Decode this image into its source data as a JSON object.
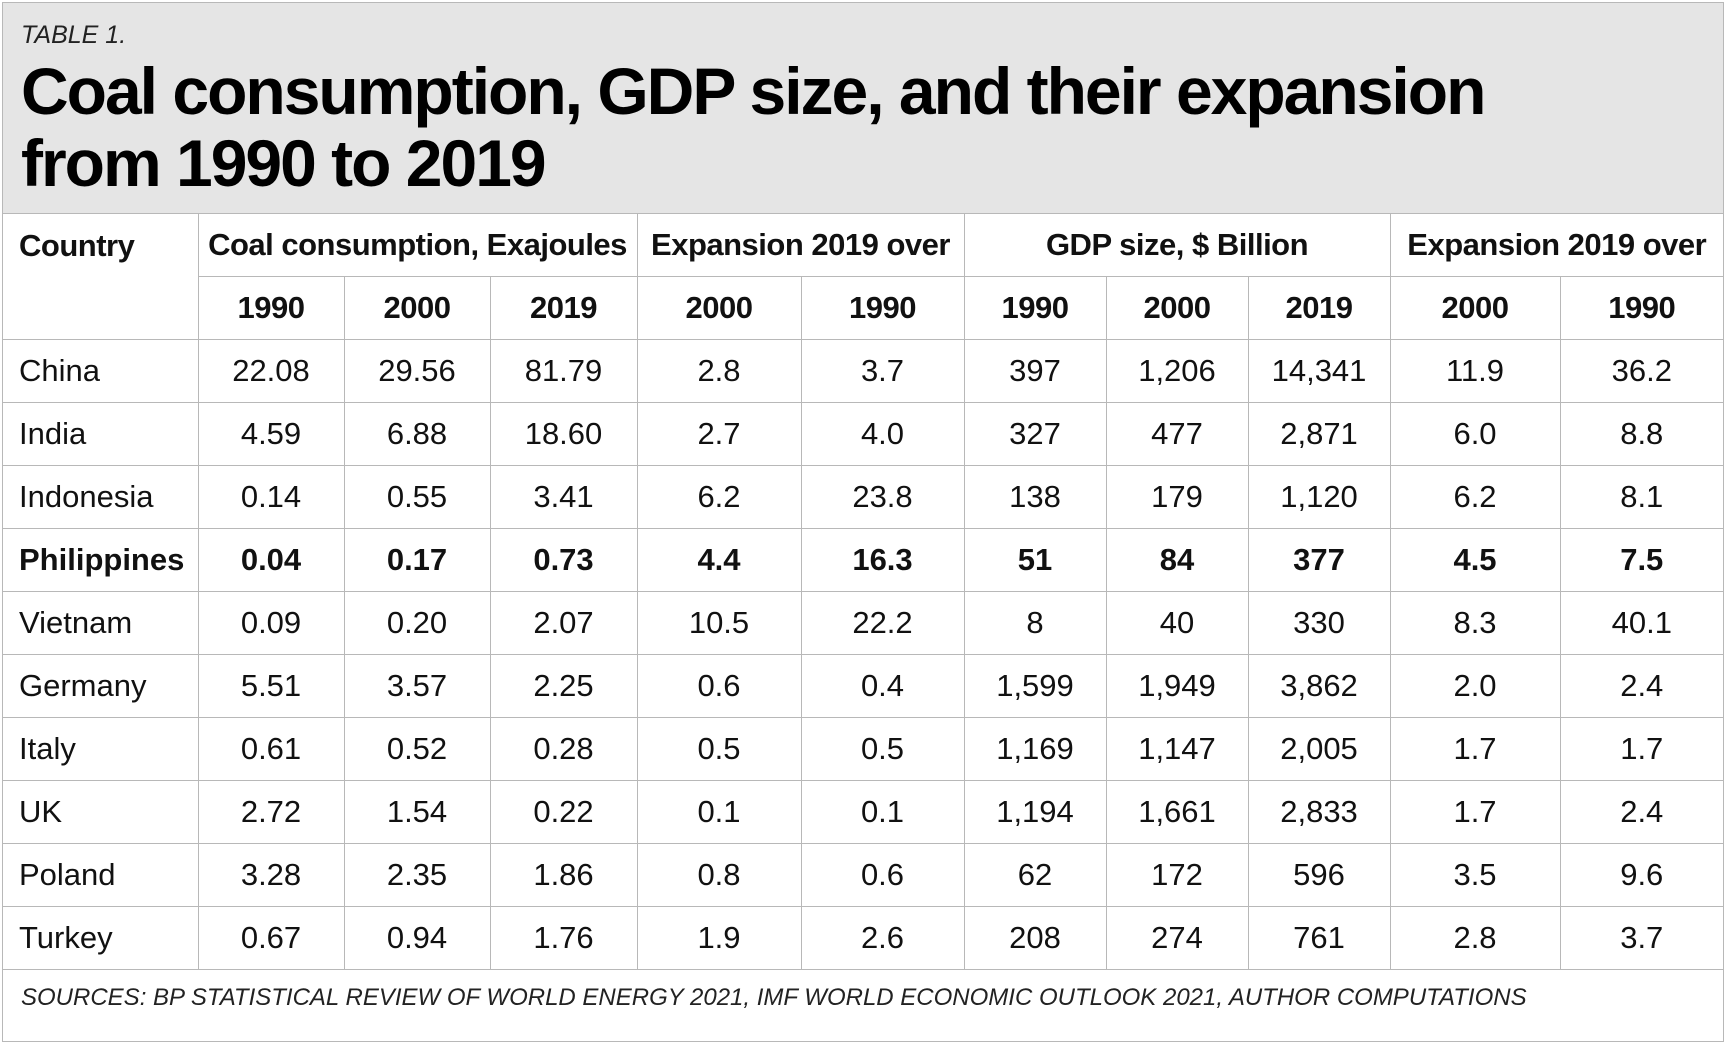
{
  "header": {
    "table_label": "TABLE 1.",
    "title": "Coal consumption, GDP size, and their expansion\nfrom 1990 to 2019"
  },
  "table": {
    "group_headers": [
      "Country",
      "Coal consumption, Exajoules",
      "Expansion 2019 over",
      "GDP size, $ Billion",
      "Expansion 2019 over"
    ],
    "sub_headers": [
      "1990",
      "2000",
      "2019",
      "2000",
      "1990",
      "1990",
      "2000",
      "2019",
      "2000",
      "1990"
    ],
    "rows": [
      {
        "country": "China",
        "values": [
          "22.08",
          "29.56",
          "81.79",
          "2.8",
          "3.7",
          "397",
          "1,206",
          "14,341",
          "11.9",
          "36.2"
        ]
      },
      {
        "country": "India",
        "values": [
          "4.59",
          "6.88",
          "18.60",
          "2.7",
          "4.0",
          "327",
          "477",
          "2,871",
          "6.0",
          "8.8"
        ]
      },
      {
        "country": "Indonesia",
        "values": [
          "0.14",
          "0.55",
          "3.41",
          "6.2",
          "23.8",
          "138",
          "179",
          "1,120",
          "6.2",
          "8.1"
        ]
      },
      {
        "country": "Philippines",
        "values": [
          "0.04",
          "0.17",
          "0.73",
          "4.4",
          "16.3",
          "51",
          "84",
          "377",
          "4.5",
          "7.5"
        ]
      },
      {
        "country": "Vietnam",
        "values": [
          "0.09",
          "0.20",
          "2.07",
          "10.5",
          "22.2",
          "8",
          "40",
          "330",
          "8.3",
          "40.1"
        ]
      },
      {
        "country": "Germany",
        "values": [
          "5.51",
          "3.57",
          "2.25",
          "0.6",
          "0.4",
          "1,599",
          "1,949",
          "3,862",
          "2.0",
          "2.4"
        ]
      },
      {
        "country": "Italy",
        "values": [
          "0.61",
          "0.52",
          "0.28",
          "0.5",
          "0.5",
          "1,169",
          "1,147",
          "2,005",
          "1.7",
          "1.7"
        ]
      },
      {
        "country": "UK",
        "values": [
          "2.72",
          "1.54",
          "0.22",
          "0.1",
          "0.1",
          "1,194",
          "1,661",
          "2,833",
          "1.7",
          "2.4"
        ]
      },
      {
        "country": "Poland",
        "values": [
          "3.28",
          "2.35",
          "1.86",
          "0.8",
          "0.6",
          "62",
          "172",
          "596",
          "3.5",
          "9.6"
        ]
      },
      {
        "country": "Turkey",
        "values": [
          "0.67",
          "0.94",
          "1.76",
          "1.9",
          "2.6",
          "208",
          "274",
          "761",
          "2.8",
          "3.7"
        ]
      }
    ]
  },
  "footer": {
    "sources": "SOURCES: BP STATISTICAL REVIEW OF WORLD ENERGY 2021, IMF WORLD ECONOMIC OUTLOOK 2021, AUTHOR COMPUTATIONS"
  }
}
